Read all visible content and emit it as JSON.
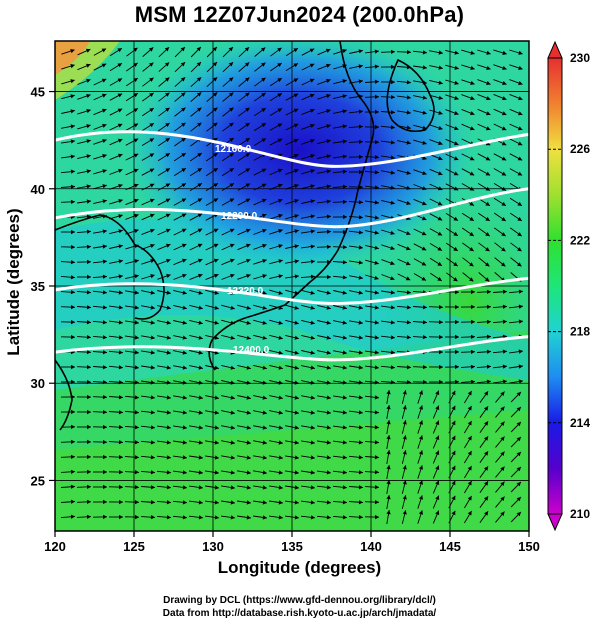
{
  "title": "MSM 12Z07Jun2024 (200.0hPa)",
  "x_label": "Longitude (degrees)",
  "y_label": "Latitude  (degrees)",
  "credits": {
    "line1": "Drawing by DCL (https://www.gfd-dennou.org/library/dcl/)",
    "line2": "Data from http://database.rish.kyoto-u.ac.jp/arch/jmadata/"
  },
  "map": {
    "lon_range": [
      120,
      150
    ],
    "lat_range": [
      22.4,
      47.6
    ],
    "x_ticks": [
      "120",
      "125",
      "130",
      "135",
      "140",
      "145",
      "150"
    ],
    "y_ticks": [
      "25",
      "30",
      "35",
      "40",
      "45"
    ],
    "gridlines": true,
    "colorbar": {
      "min": 210,
      "max": 230,
      "labels": [
        "230",
        "226",
        "222",
        "218",
        "214",
        "210"
      ],
      "colors": [
        "#cc00cc",
        "#5500cc",
        "#1a1ae6",
        "#1e8cf0",
        "#20d2d2",
        "#1ee678",
        "#30e030",
        "#a0e030",
        "#f0e040",
        "#f08030",
        "#e63030"
      ]
    },
    "contours": [
      {
        "label": "12160.0",
        "lat_start": 42.5,
        "lat_end": 42.8,
        "mid_dip": 1.5
      },
      {
        "label": "12200.0",
        "lat_start": 38.5,
        "lat_end": 40.0,
        "mid_dip": 1.2
      },
      {
        "label": "12320.0",
        "lat_start": 34.8,
        "lat_end": 35.4,
        "mid_dip": 1.0
      },
      {
        "label": "12400.0",
        "lat_start": 31.6,
        "lat_end": 32.4,
        "mid_dip": 0.8
      }
    ]
  }
}
